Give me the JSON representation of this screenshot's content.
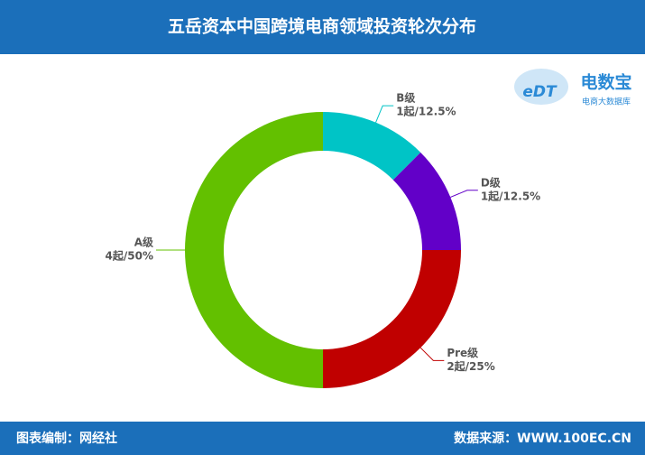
{
  "chart_data": {
    "type": "donut",
    "title": "五岳资本中国跨境电商领域投资轮次分布",
    "categories": [
      "B级",
      "D级",
      "Pre级",
      "A级"
    ],
    "values": [
      12.5,
      12.5,
      25,
      50
    ],
    "value_labels": [
      "1起/12.5%",
      "1起/12.5%",
      "2起/25%",
      "4起/50%"
    ],
    "colors": [
      "#00c4c6",
      "#6200c8",
      "#c00000",
      "#63c000"
    ]
  },
  "logo": {
    "mark": "eDT",
    "name": "电数宝",
    "tagline": "电商大数据库"
  },
  "footer": {
    "left": "图表编制：网经社",
    "right": "数据来源：WWW.100EC.CN"
  }
}
